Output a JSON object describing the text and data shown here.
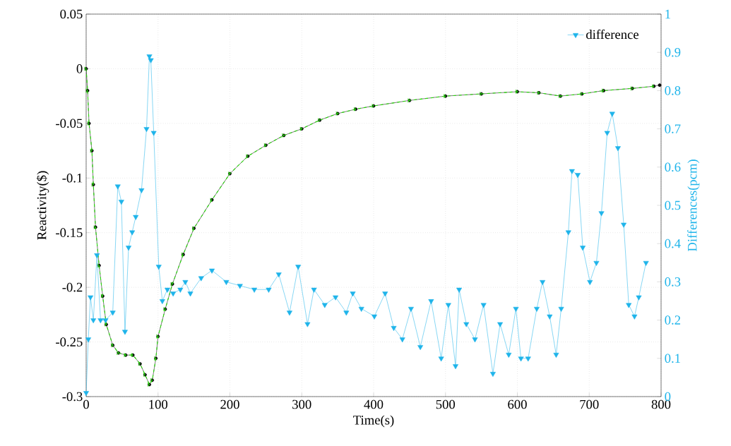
{
  "chart_data": {
    "type": "line",
    "xlabel": "Time(s)",
    "ylabel": "Reactivity($)",
    "y2label": "Differences(pcm)",
    "xlim": [
      0,
      800
    ],
    "xticks": [
      0,
      100,
      200,
      300,
      400,
      500,
      600,
      700,
      800
    ],
    "ylim": [
      -0.3,
      0.05
    ],
    "yticks": [
      -0.3,
      -0.25,
      -0.2,
      -0.15,
      -0.1,
      -0.05,
      0,
      0.05
    ],
    "y2lim": [
      0,
      1
    ],
    "y2ticks": [
      0,
      0.1,
      0.2,
      0.3,
      0.4,
      0.5,
      0.6,
      0.7,
      0.8,
      0.9,
      1
    ],
    "grid": true,
    "legend": "top right",
    "x": [
      0,
      2,
      4,
      8,
      10,
      13,
      18,
      23,
      28,
      37,
      45,
      55,
      65,
      75,
      82,
      88,
      92,
      97,
      100,
      110,
      120,
      135,
      150,
      175,
      200,
      225,
      250,
      275,
      300,
      325,
      350,
      375,
      400,
      450,
      500,
      550,
      600,
      630,
      660,
      690,
      720,
      760,
      790,
      798
    ],
    "series": [
      {
        "color": "#000000",
        "marker": "circle",
        "line_style": "solid",
        "values": [
          0,
          -0.02,
          -0.05,
          -0.075,
          -0.106,
          -0.145,
          -0.18,
          -0.208,
          -0.234,
          -0.253,
          -0.26,
          -0.262,
          -0.262,
          -0.27,
          -0.28,
          -0.289,
          -0.285,
          -0.265,
          -0.245,
          -0.22,
          -0.197,
          -0.17,
          -0.146,
          -0.12,
          -0.096,
          -0.08,
          -0.07,
          -0.061,
          -0.055,
          -0.047,
          -0.041,
          -0.037,
          -0.034,
          -0.029,
          -0.025,
          -0.023,
          -0.021,
          -0.022,
          -0.025,
          -0.023,
          -0.02,
          -0.018,
          -0.016,
          -0.015
        ]
      },
      {
        "color": "#22dd00",
        "marker": "cross",
        "line_style": "dashed",
        "values": [
          0,
          -0.02,
          -0.05,
          -0.075,
          -0.106,
          -0.145,
          -0.18,
          -0.208,
          -0.234,
          -0.253,
          -0.26,
          -0.262,
          -0.262,
          -0.27,
          -0.28,
          -0.289,
          -0.285,
          -0.265,
          -0.245,
          -0.22,
          -0.197,
          -0.17,
          -0.146,
          -0.12,
          -0.096,
          -0.08,
          -0.07,
          -0.061,
          -0.055,
          -0.047,
          -0.041,
          -0.037,
          -0.034,
          -0.029,
          -0.025,
          -0.023,
          -0.021,
          -0.022,
          -0.025,
          -0.023,
          -0.02,
          -0.018,
          -0.016,
          null
        ]
      },
      {
        "name": "difference",
        "color": "#1eb4ea",
        "marker": "triangle",
        "line_style": "solid",
        "axis": "y2",
        "x": [
          0,
          3,
          6,
          10,
          15,
          20,
          27,
          37,
          44,
          49,
          54,
          59,
          64,
          69,
          77,
          84,
          88,
          90,
          94,
          101,
          106,
          113,
          121,
          131,
          138,
          145,
          160,
          175,
          195,
          214,
          234,
          254,
          268,
          283,
          295,
          308,
          317,
          332,
          347,
          362,
          371,
          383,
          401,
          416,
          428,
          440,
          452,
          465,
          480,
          494,
          504,
          514,
          519,
          529,
          541,
          553,
          566,
          576,
          588,
          598,
          605,
          615,
          627,
          635,
          645,
          654,
          661,
          671,
          676,
          684,
          691,
          701,
          710,
          717,
          725,
          732,
          740,
          748,
          755,
          763,
          769,
          779
        ],
        "values": [
          0.01,
          0.15,
          0.26,
          0.2,
          0.37,
          0.2,
          0.2,
          0.22,
          0.55,
          0.51,
          0.17,
          0.39,
          0.43,
          0.47,
          0.54,
          0.7,
          0.89,
          0.88,
          0.69,
          0.34,
          0.25,
          0.28,
          0.27,
          0.28,
          0.3,
          0.27,
          0.31,
          0.33,
          0.3,
          0.29,
          0.28,
          0.28,
          0.32,
          0.22,
          0.34,
          0.19,
          0.28,
          0.24,
          0.26,
          0.22,
          0.27,
          0.23,
          0.21,
          0.27,
          0.18,
          0.15,
          0.23,
          0.13,
          0.25,
          0.1,
          0.24,
          0.08,
          0.28,
          0.19,
          0.15,
          0.24,
          0.06,
          0.19,
          0.11,
          0.23,
          0.1,
          0.1,
          0.23,
          0.3,
          0.21,
          0.11,
          0.23,
          0.43,
          0.59,
          0.58,
          0.39,
          0.3,
          0.35,
          0.48,
          0.69,
          0.74,
          0.65,
          0.45,
          0.24,
          0.21,
          0.26,
          0.35
        ]
      }
    ]
  }
}
